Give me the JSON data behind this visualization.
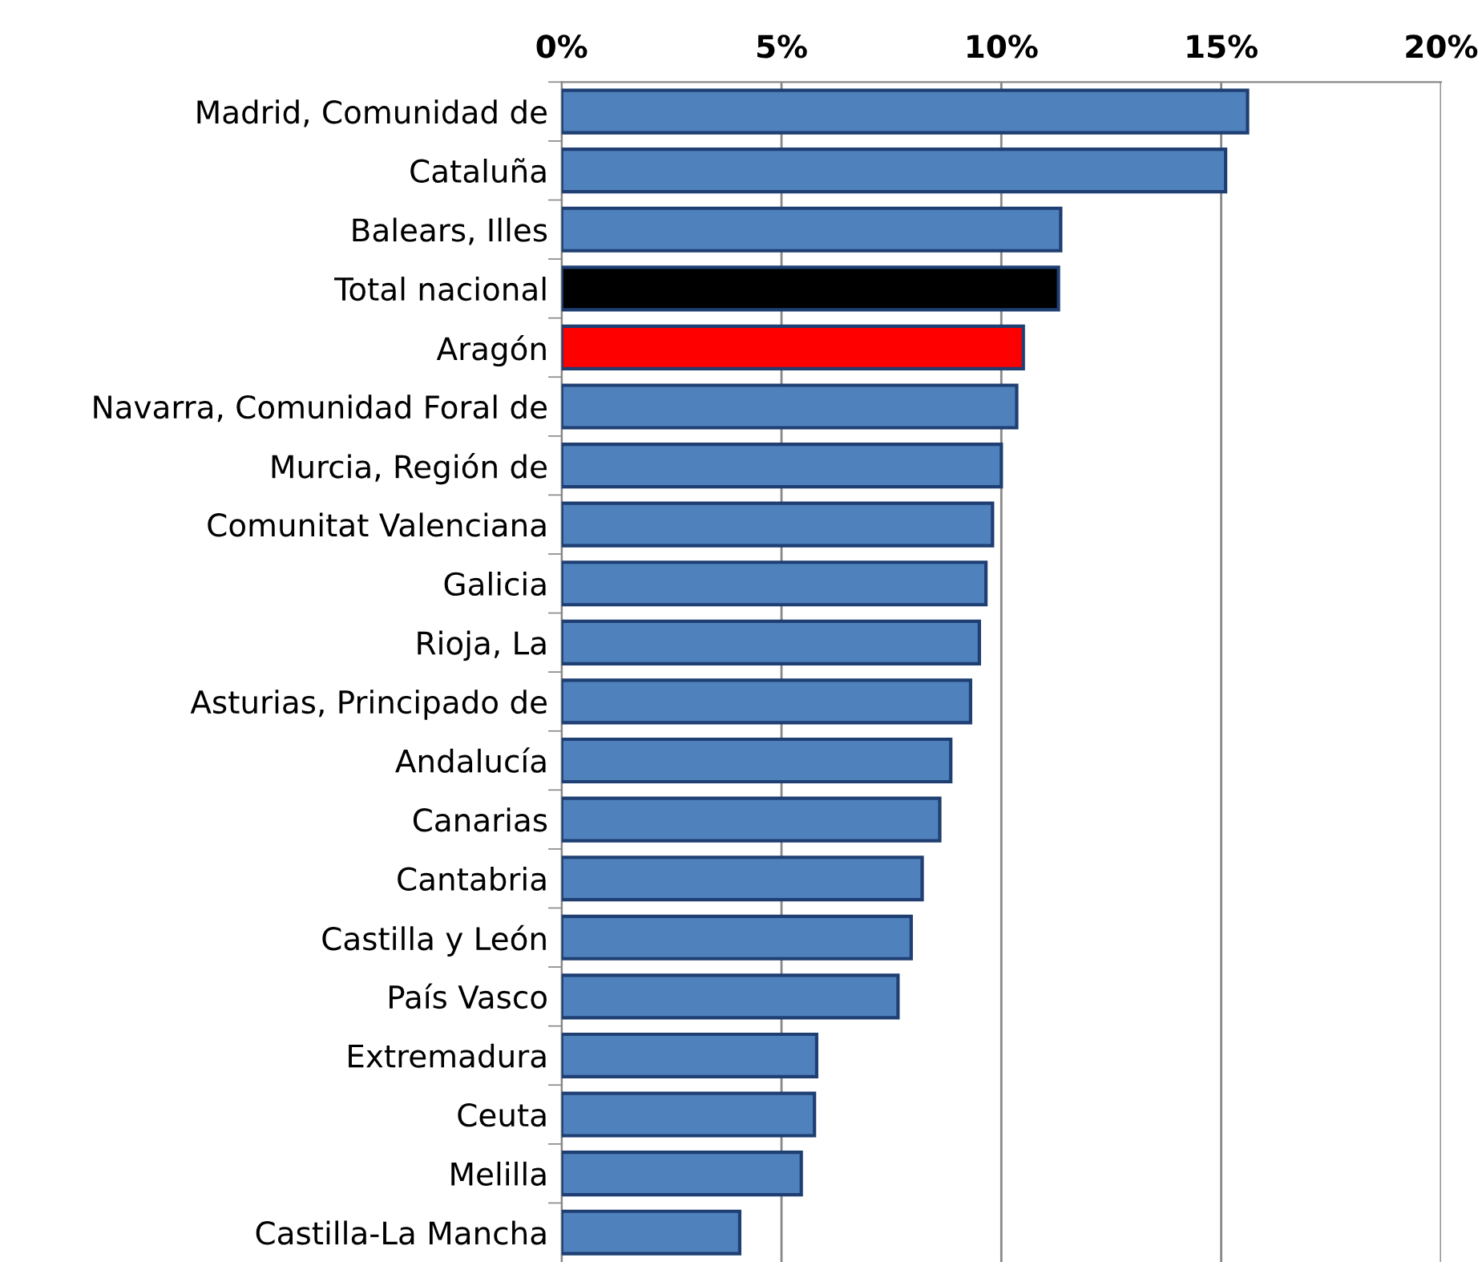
{
  "chart_data": {
    "type": "bar",
    "orientation": "horizontal",
    "categories": [
      "Madrid, Comunidad de",
      "Cataluña",
      "Balears, Illes",
      "Total nacional",
      "Aragón",
      "Navarra, Comunidad Foral de",
      "Murcia, Región de",
      "Comunitat Valenciana",
      "Galicia",
      "Rioja, La",
      "Asturias, Principado de",
      "Andalucía",
      "Canarias",
      "Cantabria",
      "Castilla y León",
      "País Vasco",
      "Extremadura",
      "Ceuta",
      "Melilla",
      "Castilla-La Mancha"
    ],
    "values": [
      15.6,
      15.1,
      11.35,
      11.3,
      10.5,
      10.35,
      10.0,
      9.8,
      9.65,
      9.5,
      9.3,
      8.85,
      8.6,
      8.2,
      7.95,
      7.65,
      5.8,
      5.75,
      5.45,
      4.05
    ],
    "colors": [
      "#4f81bd",
      "#4f81bd",
      "#4f81bd",
      "#000000",
      "#ff0000",
      "#4f81bd",
      "#4f81bd",
      "#4f81bd",
      "#4f81bd",
      "#4f81bd",
      "#4f81bd",
      "#4f81bd",
      "#4f81bd",
      "#4f81bd",
      "#4f81bd",
      "#4f81bd",
      "#4f81bd",
      "#4f81bd",
      "#4f81bd",
      "#4f81bd"
    ],
    "xlim": [
      0,
      20
    ],
    "xticks": [
      {
        "value": 0,
        "label": "0%"
      },
      {
        "value": 5,
        "label": "5%"
      },
      {
        "value": 10,
        "label": "10%"
      },
      {
        "value": 15,
        "label": "15%"
      },
      {
        "value": 20,
        "label": "20%"
      }
    ],
    "grid": "x"
  }
}
